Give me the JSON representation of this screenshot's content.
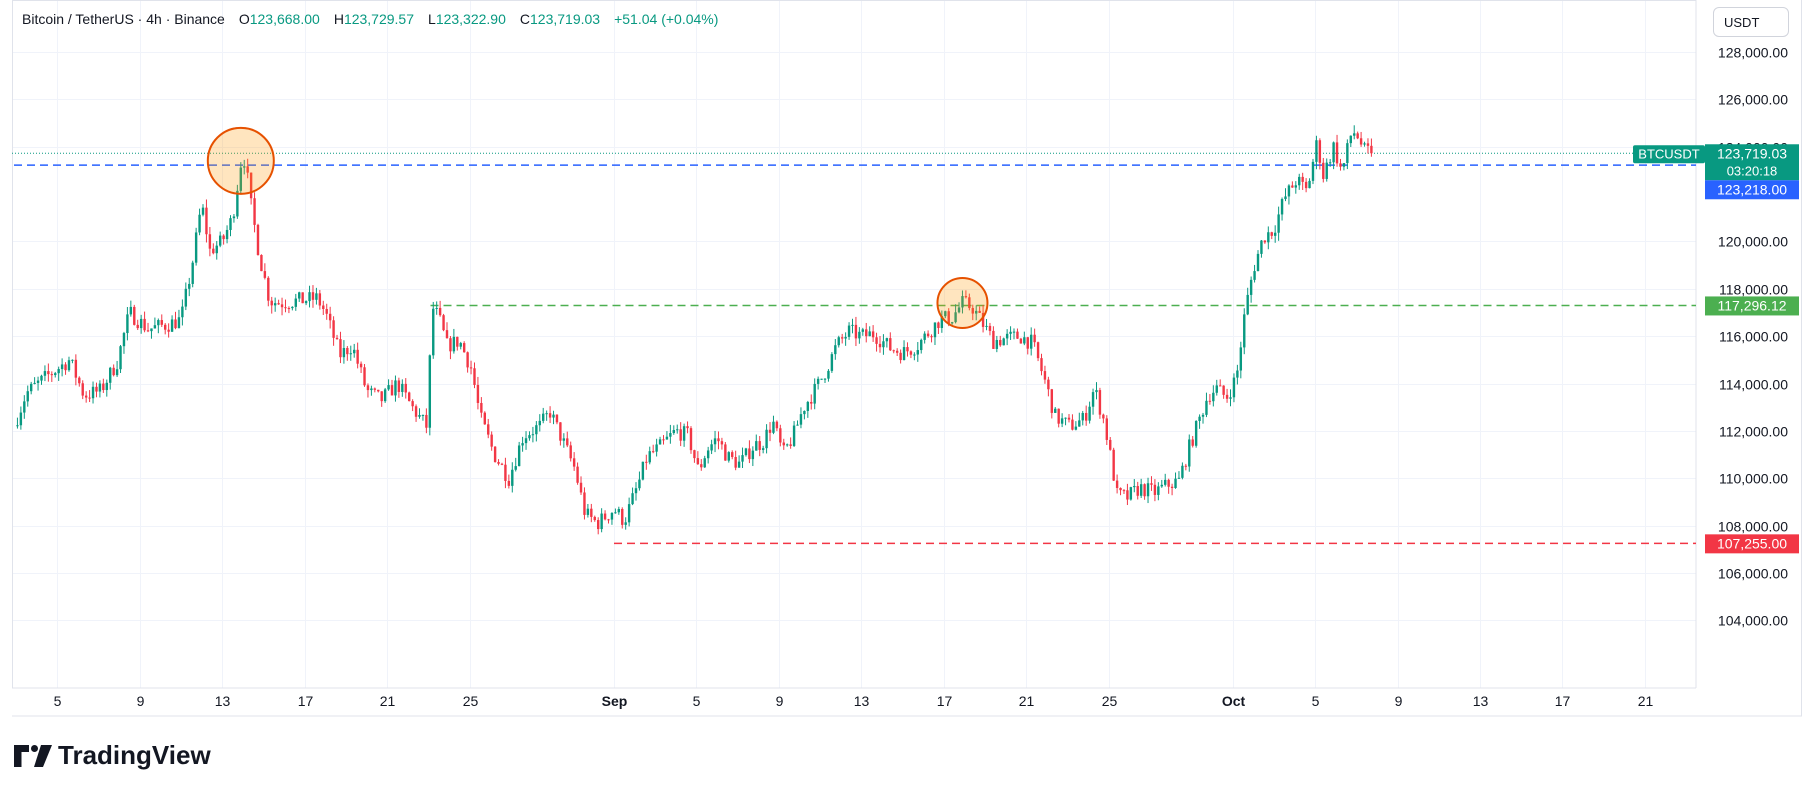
{
  "header": {
    "symbol": "Bitcoin / TetherUS · 4h · Binance",
    "o_label": "O",
    "o_value": "123,668.00",
    "h_label": "H",
    "h_value": "123,729.57",
    "l_label": "L",
    "l_value": "123,322.90",
    "c_label": "C",
    "c_value": "123,719.03",
    "change": "+51.04 (+0.04%)"
  },
  "currency_button": "USDT",
  "brand": "TradingView",
  "colors": {
    "up": "#089981",
    "down": "#F23645",
    "blue_line": "#2962FF",
    "green_line": "#4CAF50",
    "red_line": "#F23645",
    "circle": "#E65100"
  },
  "chart_data": {
    "type": "candlestick",
    "interval": "4h",
    "ylim": [
      102500,
      128500
    ],
    "y_ticks": [
      "104,000.00",
      "106,000.00",
      "108,000.00",
      "110,000.00",
      "112,000.00",
      "114,000.00",
      "116,000.00",
      "118,000.00",
      "120,000.00",
      "124,000.00",
      "126,000.00",
      "128,000.00"
    ],
    "y_tick_values": [
      104000,
      106000,
      108000,
      110000,
      112000,
      114000,
      116000,
      118000,
      120000,
      124000,
      126000,
      128000
    ],
    "x_tick_labels": [
      "5",
      "9",
      "13",
      "17",
      "21",
      "25",
      "Sep",
      "5",
      "9",
      "13",
      "17",
      "21",
      "25",
      "Oct",
      "5",
      "9",
      "13",
      "17",
      "21"
    ],
    "x_tick_days": [
      5,
      9,
      13,
      17,
      21,
      25,
      32,
      36,
      40,
      44,
      48,
      52,
      56,
      62,
      66,
      70,
      74,
      78,
      82
    ],
    "x_range_days": [
      2.9,
      83.7
    ],
    "labels": {
      "ticker": "BTCUSDT",
      "last_price": "123,719.03",
      "countdown": "03:20:18",
      "blue_level": "123,218.00",
      "green_level": "117,296.12",
      "red_level": "107,255.00"
    },
    "levels": [
      {
        "name": "blue_level",
        "value": 123218,
        "from_day": 2.9,
        "style": "dashed"
      },
      {
        "name": "green_level",
        "value": 117296.12,
        "from_day": 23.1,
        "style": "dashed"
      },
      {
        "name": "red_level",
        "value": 107255,
        "from_day": 32.0,
        "style": "dashed"
      }
    ],
    "last_price_value": 123719.03,
    "highlight_circles": [
      {
        "day": 13.9,
        "price": 123400
      },
      {
        "day": 48.9,
        "price": 117400
      }
    ],
    "anchors": [
      [
        2.9,
        112200
      ],
      [
        3.5,
        113600
      ],
      [
        4.5,
        114300
      ],
      [
        5.6,
        115000
      ],
      [
        6.3,
        113500
      ],
      [
        7.1,
        113700
      ],
      [
        7.9,
        114900
      ],
      [
        8.5,
        117000
      ],
      [
        9.4,
        116300
      ],
      [
        10.4,
        116500
      ],
      [
        11.0,
        116700
      ],
      [
        11.5,
        118800
      ],
      [
        12.0,
        121600
      ],
      [
        12.4,
        119600
      ],
      [
        13.0,
        120000
      ],
      [
        13.5,
        121000
      ],
      [
        13.9,
        123300
      ],
      [
        14.1,
        123500
      ],
      [
        14.4,
        121500
      ],
      [
        14.8,
        119400
      ],
      [
        15.3,
        117500
      ],
      [
        15.8,
        117400
      ],
      [
        16.7,
        117500
      ],
      [
        17.6,
        117600
      ],
      [
        18.0,
        117000
      ],
      [
        18.7,
        115200
      ],
      [
        19.3,
        115600
      ],
      [
        20.0,
        113700
      ],
      [
        20.7,
        113300
      ],
      [
        21.5,
        114000
      ],
      [
        22.2,
        113000
      ],
      [
        22.9,
        112200
      ],
      [
        23.2,
        117200
      ],
      [
        23.5,
        116800
      ],
      [
        23.9,
        115600
      ],
      [
        24.5,
        115800
      ],
      [
        25.1,
        114600
      ],
      [
        25.5,
        112600
      ],
      [
        26.2,
        111000
      ],
      [
        26.9,
        110000
      ],
      [
        27.6,
        111800
      ],
      [
        28.4,
        112200
      ],
      [
        28.9,
        112800
      ],
      [
        29.4,
        111800
      ],
      [
        30.1,
        110400
      ],
      [
        30.6,
        108500
      ],
      [
        31.2,
        108100
      ],
      [
        31.6,
        108400
      ],
      [
        32.0,
        108700
      ],
      [
        32.5,
        108200
      ],
      [
        33.2,
        109800
      ],
      [
        33.6,
        110900
      ],
      [
        34.2,
        111300
      ],
      [
        35.0,
        112000
      ],
      [
        35.6,
        111800
      ],
      [
        36.1,
        110300
      ],
      [
        36.5,
        111200
      ],
      [
        37.0,
        111700
      ],
      [
        37.5,
        110900
      ],
      [
        38.1,
        110600
      ],
      [
        38.8,
        111400
      ],
      [
        39.2,
        111500
      ],
      [
        39.7,
        112400
      ],
      [
        40.2,
        111000
      ],
      [
        40.7,
        111800
      ],
      [
        41.2,
        113000
      ],
      [
        41.8,
        113800
      ],
      [
        42.3,
        114600
      ],
      [
        42.8,
        115600
      ],
      [
        43.4,
        116200
      ],
      [
        44.0,
        116000
      ],
      [
        44.6,
        116100
      ],
      [
        45.4,
        115500
      ],
      [
        46.0,
        115300
      ],
      [
        46.7,
        115600
      ],
      [
        47.4,
        116300
      ],
      [
        47.8,
        116700
      ],
      [
        48.4,
        116800
      ],
      [
        48.9,
        117400
      ],
      [
        49.4,
        117200
      ],
      [
        49.9,
        116500
      ],
      [
        50.4,
        115800
      ],
      [
        51.0,
        115900
      ],
      [
        51.7,
        116000
      ],
      [
        52.3,
        115700
      ],
      [
        52.9,
        114100
      ],
      [
        53.4,
        112600
      ],
      [
        54.1,
        112200
      ],
      [
        54.8,
        112500
      ],
      [
        55.3,
        113800
      ],
      [
        55.8,
        112300
      ],
      [
        56.4,
        109300
      ],
      [
        56.9,
        109200
      ],
      [
        57.5,
        109600
      ],
      [
        58.2,
        109400
      ],
      [
        58.8,
        109700
      ],
      [
        59.4,
        109900
      ],
      [
        59.9,
        111300
      ],
      [
        60.4,
        112500
      ],
      [
        60.8,
        113500
      ],
      [
        61.2,
        113800
      ],
      [
        61.7,
        113400
      ],
      [
        62.2,
        114300
      ],
      [
        62.6,
        117000
      ],
      [
        63.0,
        118800
      ],
      [
        63.5,
        120200
      ],
      [
        64.0,
        120500
      ],
      [
        64.5,
        121800
      ],
      [
        65.1,
        122600
      ],
      [
        65.6,
        122100
      ],
      [
        66.1,
        124200
      ],
      [
        66.4,
        122800
      ],
      [
        66.9,
        124000
      ],
      [
        67.3,
        122900
      ],
      [
        67.8,
        124700
      ],
      [
        68.1,
        124400
      ],
      [
        68.4,
        123800
      ],
      [
        68.8,
        123719
      ]
    ]
  }
}
